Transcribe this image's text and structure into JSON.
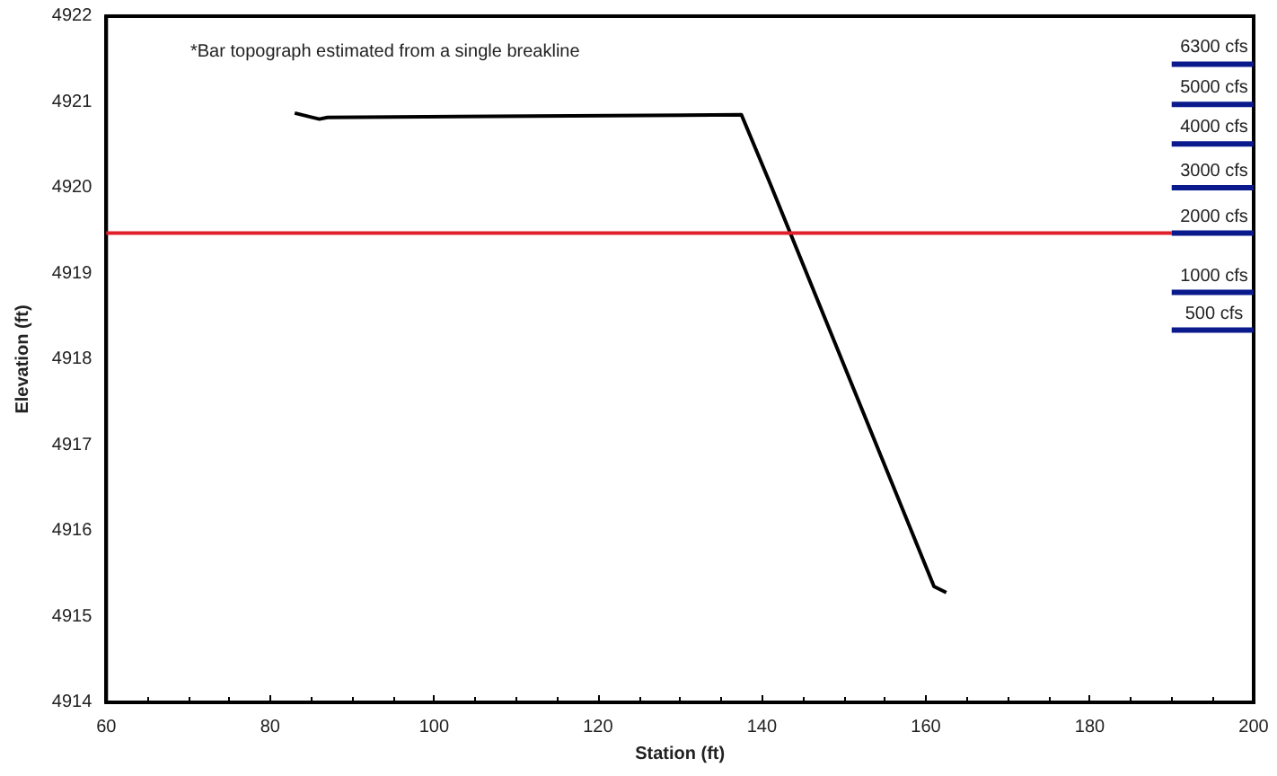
{
  "chart_data": {
    "type": "line",
    "xlabel": "Station (ft)",
    "ylabel": "Elevation (ft)",
    "xlim": [
      60,
      200
    ],
    "xticks": [
      60,
      80,
      100,
      120,
      140,
      160,
      180,
      200
    ],
    "ylim": [
      4914,
      4922
    ],
    "yticks": [
      4914,
      4915,
      4916,
      4917,
      4918,
      4919,
      4920,
      4921,
      4922
    ],
    "grid": false,
    "legend": false,
    "marker": "none",
    "line_style": "solid",
    "annotations": [
      "*Bar topograph estimated from a single breakline"
    ],
    "series": [
      {
        "color": "#000000",
        "x": [
          83,
          86,
          87,
          137.5,
          141,
          161,
          162.5
        ],
        "values": [
          4920.87,
          4920.8,
          4920.82,
          4920.85,
          4920.05,
          4915.35,
          4915.28
        ]
      },
      {
        "color": "#e0202a",
        "x": [
          60,
          190
        ],
        "values": [
          4919.47,
          4919.47
        ]
      },
      {
        "name": "6300 cfs",
        "color": "#0a1a8c",
        "x": [
          190,
          200
        ],
        "values": [
          4921.44,
          4921.44
        ]
      },
      {
        "name": "5000 cfs",
        "color": "#0a1a8c",
        "x": [
          190,
          200
        ],
        "values": [
          4920.97,
          4920.97
        ]
      },
      {
        "name": "4000 cfs",
        "color": "#0a1a8c",
        "x": [
          190,
          200
        ],
        "values": [
          4920.51,
          4920.51
        ]
      },
      {
        "name": "3000 cfs",
        "color": "#0a1a8c",
        "x": [
          190,
          200
        ],
        "values": [
          4920.0,
          4920.0
        ]
      },
      {
        "name": "2000 cfs",
        "color": "#0a1a8c",
        "x": [
          190,
          200
        ],
        "values": [
          4919.47,
          4919.47
        ]
      },
      {
        "name": "1000 cfs",
        "color": "#0a1a8c",
        "x": [
          190,
          200
        ],
        "values": [
          4918.78,
          4918.78
        ]
      },
      {
        "name": "500 cfs",
        "color": "#0a1a8c",
        "x": [
          190,
          200
        ],
        "values": [
          4918.34,
          4918.34
        ]
      }
    ]
  }
}
